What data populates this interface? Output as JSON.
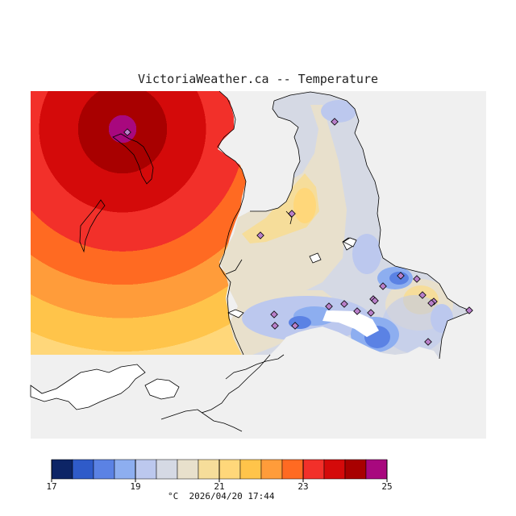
{
  "title": "VictoriaWeather.ca -- Temperature",
  "legend": {
    "unit": "°C",
    "min": 17,
    "max": 25,
    "step": 0.5,
    "ticks": [
      "17",
      "19",
      "21",
      "23",
      "25"
    ],
    "colors": [
      "#0d2566",
      "#2f5bc9",
      "#5b82e4",
      "#8daef0",
      "#bcc8ee",
      "#d5d9e4",
      "#e8e0cc",
      "#f6dd9a",
      "#ffd77a",
      "#ffc44a",
      "#ff9c3a",
      "#ff6a22",
      "#f2302a",
      "#d40a0a",
      "#a80000",
      "#a8087e"
    ]
  },
  "timestamp": "2026/04/20 17:44",
  "colors": {
    "land": "#f0f0f0",
    "water": "#ffffff",
    "coast": "#000000",
    "station": "#b87fc9"
  }
}
